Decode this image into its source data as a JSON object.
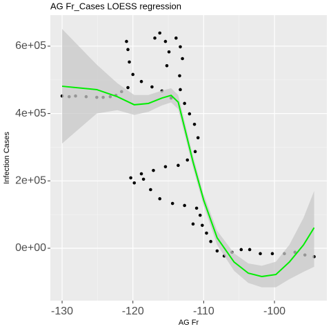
{
  "chart_data": {
    "type": "scatter",
    "title": "AG Fr_Cases LOESS regression",
    "x_label": "AG Fr",
    "y_label": "Infection Cases",
    "color": "#000000",
    "x": [
      -130.0,
      -129.0,
      -128.1,
      -126.6,
      -125.1,
      -124.2,
      -123.2,
      -122.4,
      -121.6,
      -120.7,
      -120.0,
      -120.5,
      -120.7,
      -120.9,
      -118.8,
      -117.3,
      -115.9,
      -114.6,
      -116.9,
      -116.2,
      -115.4,
      -114.9,
      -115.2,
      -113.9,
      -113.3,
      -113.0,
      -113.4,
      -113.3,
      -112.7,
      -112.0,
      -111.3,
      -110.8,
      -111.2,
      -112.3,
      -113.6,
      -115.4,
      -117.1,
      -118.8,
      -120.3,
      -119.8,
      -118.5,
      -117.5,
      -116.2,
      -114.4,
      -112.7,
      -111.0,
      -110.5,
      -111.5,
      -110.2,
      -109.6,
      -109.0,
      -108.1,
      -107.1,
      -106.0,
      -104.7,
      -103.5,
      -102.0,
      -100.3,
      -98.6,
      -97.1,
      -95.7,
      -94.4
    ],
    "values": [
      452000,
      450000,
      452000,
      450000,
      448000,
      448000,
      450000,
      454000,
      465000,
      477000,
      516000,
      553000,
      590000,
      614000,
      495000,
      479000,
      467000,
      446000,
      624000,
      639000,
      614000,
      583000,
      542000,
      624000,
      598000,
      563000,
      512000,
      471000,
      430000,
      399000,
      368000,
      328000,
      287000,
      262000,
      246000,
      242000,
      231000,
      221000,
      209000,
      194000,
      205000,
      174000,
      147000,
      133000,
      127000,
      119000,
      98000,
      72000,
      68000,
      45000,
      20000,
      -8000,
      -23000,
      -12000,
      -4000,
      -4000,
      -16000,
      -16000,
      -16000,
      -12000,
      -20000,
      -25000
    ],
    "fit": {
      "color": "#00ee00",
      "band_color": "#c8c8c8",
      "x": [
        -130,
        -125.1,
        -122.2,
        -119.8,
        -117.8,
        -115.9,
        -114.6,
        -113.6,
        -112.7,
        -111.5,
        -110,
        -108.1,
        -105.7,
        -103.7,
        -101.8,
        -99.8,
        -97.9,
        -95.9,
        -94.4
      ],
      "values": [
        481000,
        471000,
        450000,
        426000,
        430000,
        446000,
        454000,
        434000,
        358000,
        256000,
        143000,
        31000,
        -41000,
        -74000,
        -84000,
        -78000,
        -41000,
        10000,
        61000
      ],
      "upper": [
        651000,
        545000,
        490000,
        455000,
        455000,
        468000,
        475000,
        455000,
        378000,
        274000,
        160000,
        52000,
        -15000,
        -45000,
        -52000,
        -40000,
        10000,
        90000,
        170000
      ],
      "lower": [
        311000,
        400000,
        410000,
        396000,
        405000,
        424000,
        433000,
        413000,
        338000,
        238000,
        126000,
        10000,
        -67000,
        -103000,
        -116000,
        -116000,
        -92000,
        -70000,
        -55000
      ]
    },
    "xlim": [
      -131.66,
      -92.6
    ],
    "ylim": [
      -155600,
      692000
    ],
    "xticks": [
      -130,
      -120,
      -110,
      -100
    ],
    "yticks": [
      {
        "value": 0,
        "label": "0e+00"
      },
      {
        "value": 200000,
        "label": "2e+05"
      },
      {
        "value": 400000,
        "label": "4e+05"
      },
      {
        "value": 600000,
        "label": "6e+05"
      }
    ],
    "grid": true
  }
}
